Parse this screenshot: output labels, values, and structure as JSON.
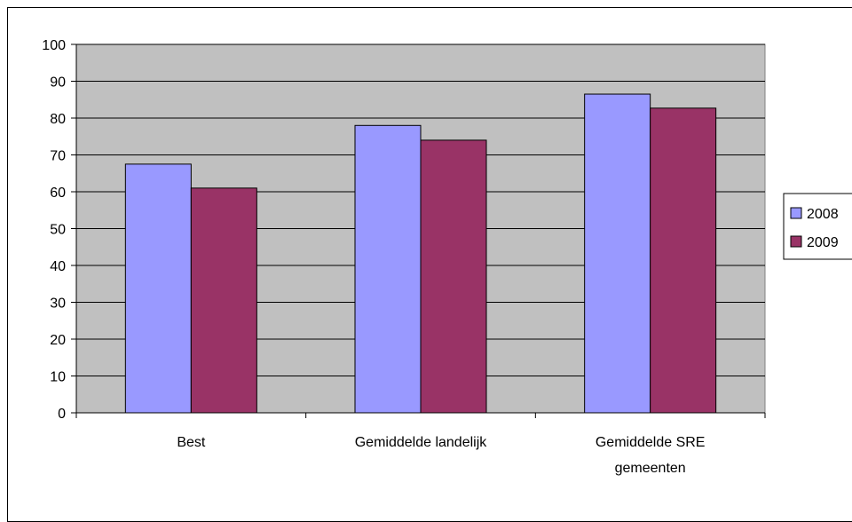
{
  "chart_data": {
    "type": "bar",
    "categories": [
      "Best",
      "Gemiddelde landelijk",
      "Gemiddelde SRE gemeenten"
    ],
    "category_lines": [
      [
        "Best"
      ],
      [
        "Gemiddelde landelijk"
      ],
      [
        "Gemiddelde SRE",
        "gemeenten"
      ]
    ],
    "series": [
      {
        "name": "2008",
        "values": [
          67.5,
          78,
          86.5
        ],
        "color": "#9999ff"
      },
      {
        "name": "2009",
        "values": [
          61,
          74,
          82.7
        ],
        "color": "#993366"
      }
    ],
    "ylim": [
      0,
      100
    ],
    "yticks": [
      0,
      10,
      20,
      30,
      40,
      50,
      60,
      70,
      80,
      90,
      100
    ],
    "title": "",
    "xlabel": "",
    "ylabel": "",
    "grid": true,
    "plot_background": "#c0c0c0",
    "legend_position": "right"
  }
}
